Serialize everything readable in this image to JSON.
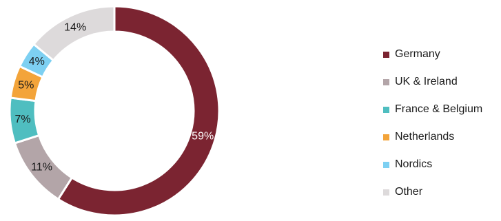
{
  "chart_data": {
    "type": "pie",
    "donut": true,
    "categories": [
      "Germany",
      "UK & Ireland",
      "France & Belgium",
      "Netherlands",
      "Nordics",
      "Other"
    ],
    "values": [
      59,
      11,
      7,
      5,
      4,
      14
    ],
    "labels": [
      "59%",
      "11%",
      "7%",
      "5%",
      "4%",
      "14%"
    ],
    "colors": [
      "#7b2431",
      "#b3a5a8",
      "#4fbec0",
      "#f3a43a",
      "#7dd0f2",
      "#dddadb"
    ],
    "label_colors": [
      "#ffffff",
      "#1a1a1a",
      "#1a1a1a",
      "#1a1a1a",
      "#1a1a1a",
      "#1a1a1a"
    ],
    "legend_position": "right"
  }
}
